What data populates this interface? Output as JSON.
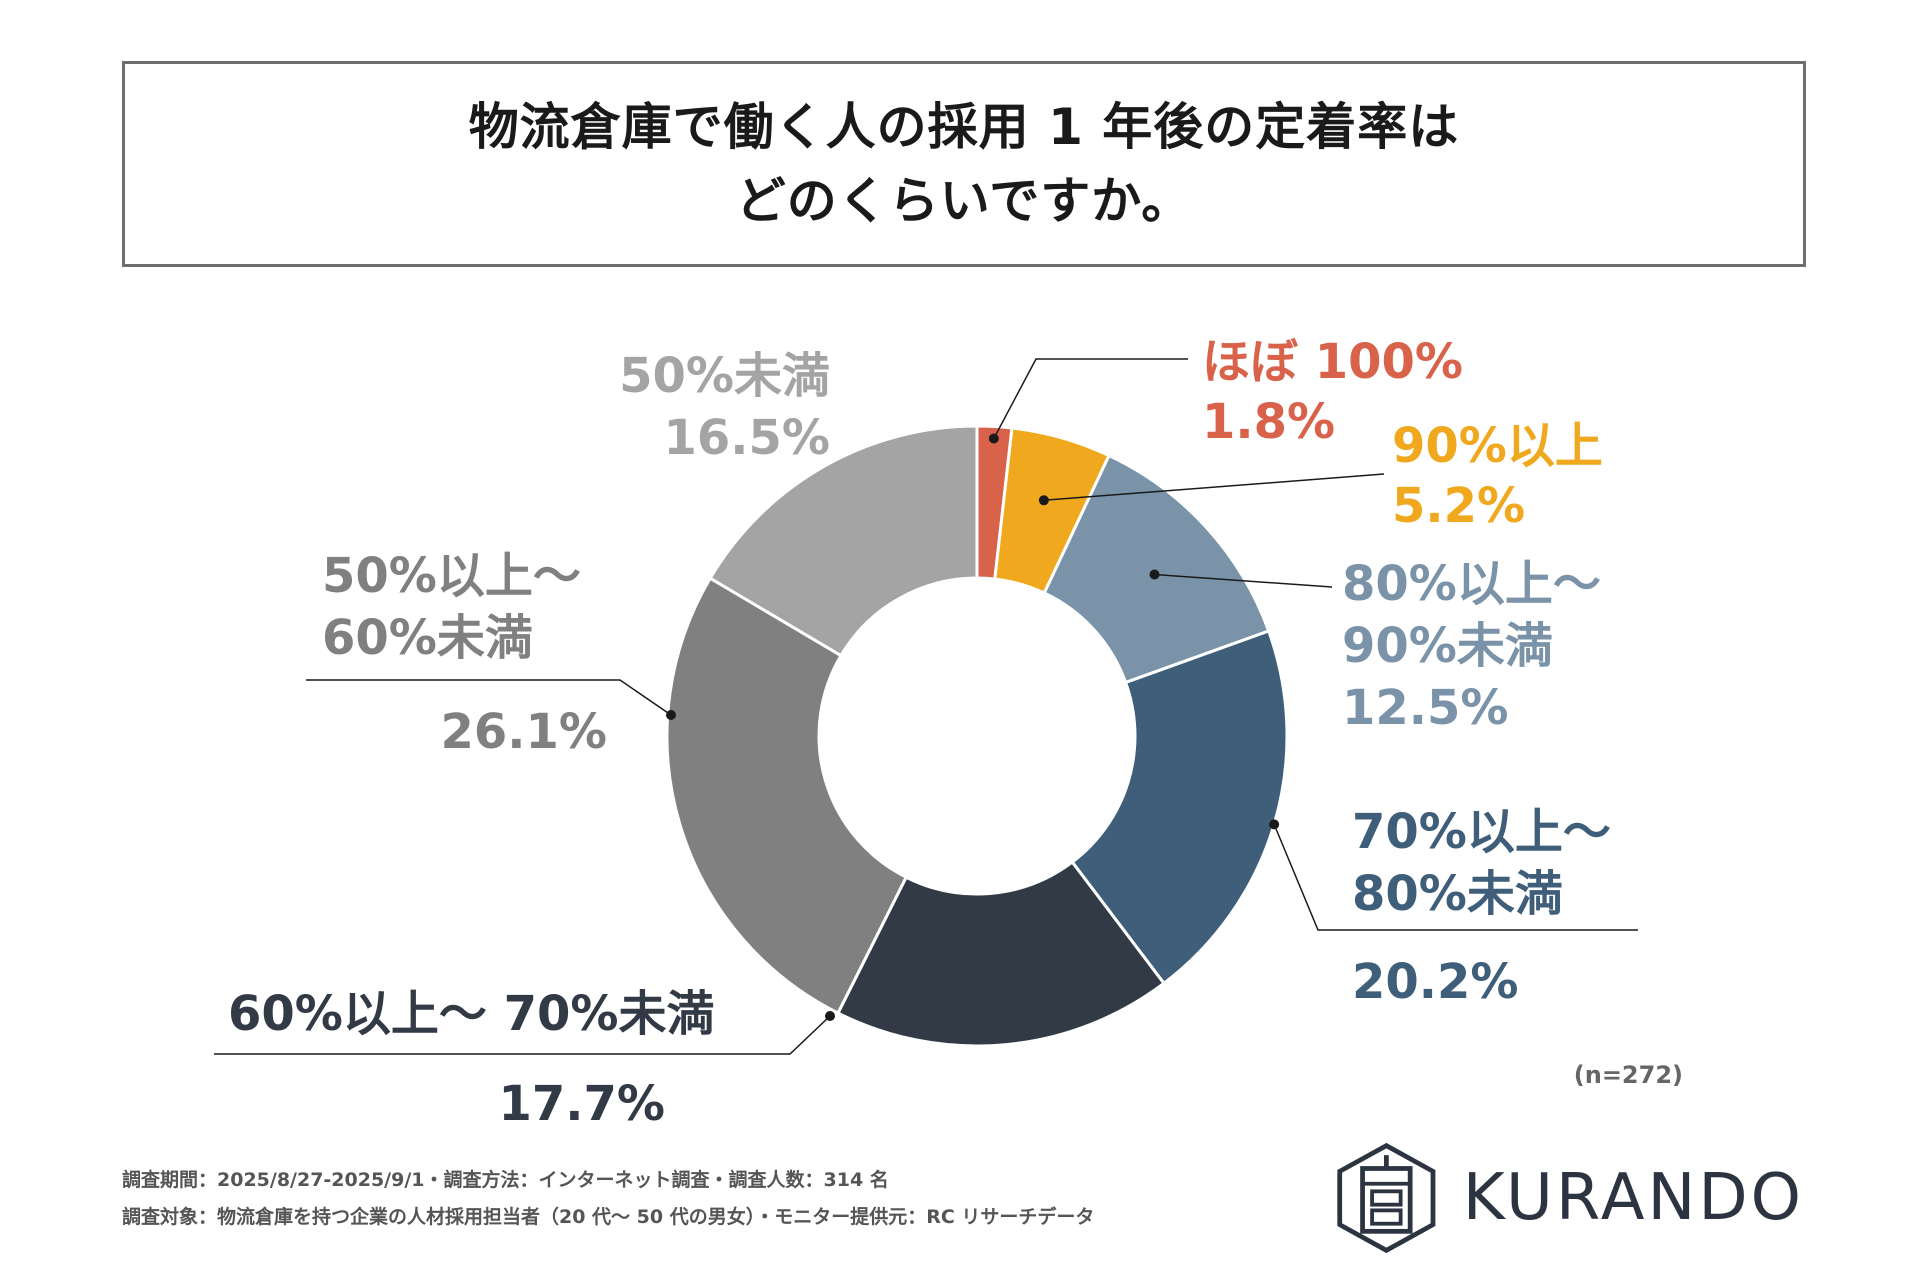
{
  "title": {
    "line1": "物流倉庫で働く人の採用 1 年後の定着率は",
    "line2": "どのくらいですか。"
  },
  "chart_data": {
    "type": "pie",
    "variant": "donut",
    "sample_size": "(n=272)",
    "slices": [
      {
        "label": "ほぼ 100%",
        "value_text": "1.8%",
        "value": 1.8,
        "color": "#d9634a"
      },
      {
        "label": "90%以上",
        "value_text": "5.2%",
        "value": 5.2,
        "color": "#f0a81e"
      },
      {
        "label": "80%以上～ 90%未満",
        "label_lines": [
          "80%以上～",
          "90%未満"
        ],
        "value_text": "12.5%",
        "value": 12.5,
        "color": "#7a93a8"
      },
      {
        "label": "70%以上～ 80%未満",
        "label_lines": [
          "70%以上～",
          "80%未満"
        ],
        "value_text": "20.2%",
        "value": 20.2,
        "color": "#3e5e79"
      },
      {
        "label": "60%以上～ 70%未満",
        "value_text": "17.7%",
        "value": 17.7,
        "color": "#323a46"
      },
      {
        "label": "50%以上～ 60%未満",
        "label_lines": [
          "50%以上～",
          "60%未満"
        ],
        "value_text": "26.1%",
        "value": 26.1,
        "color": "#808080"
      },
      {
        "label": "50%未満",
        "value_text": "16.5%",
        "value": 16.5,
        "color": "#a4a4a4"
      }
    ]
  },
  "footer": {
    "line1": "調査期間：2025/8/27-2025/9/1・調査方法：インターネット調査・調査人数：314 名",
    "line2": "調査対象：物流倉庫を持つ企業の人材採用担当者（20 代～ 50 代の男女）・モニター提供元：RC リサーチデータ"
  },
  "logo": {
    "text": "KURANDO",
    "icon": "kurando-hexagon-logo-icon"
  }
}
